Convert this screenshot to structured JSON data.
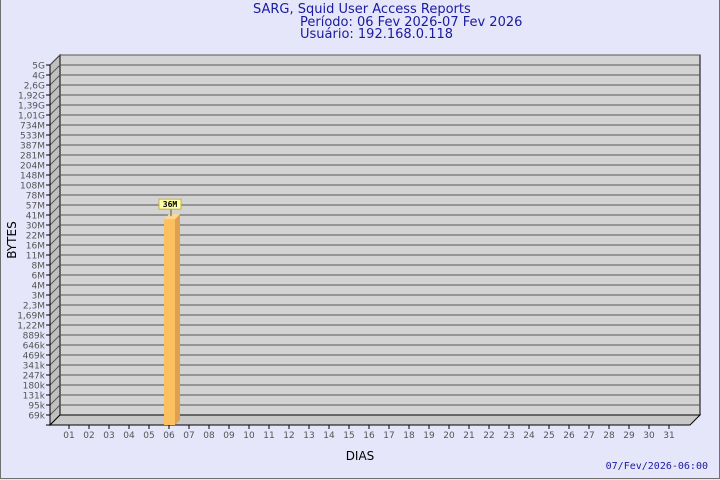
{
  "title": "SARG, Squid User Access Reports",
  "period": "Período: 06 Fev 2026-07 Fev 2026",
  "user": "Usuário: 192.168.0.118",
  "timestamp": "07/Fev/2026-06:00",
  "colors": {
    "background": "#e6e6fa",
    "plot": "#d3d3d3",
    "bar": "#fbc060",
    "bar_side": "#e0a050",
    "title": "#1a1aa0"
  },
  "chart_data": {
    "type": "bar",
    "xlabel": "DIAS",
    "ylabel": "BYTES",
    "categories": [
      "01",
      "02",
      "03",
      "04",
      "05",
      "06",
      "07",
      "08",
      "09",
      "10",
      "11",
      "12",
      "13",
      "14",
      "15",
      "16",
      "17",
      "18",
      "19",
      "20",
      "21",
      "22",
      "23",
      "24",
      "25",
      "26",
      "27",
      "28",
      "29",
      "30",
      "31"
    ],
    "yticks": [
      "69k",
      "95k",
      "131k",
      "180k",
      "247k",
      "341k",
      "469k",
      "646k",
      "889k",
      "1,22M",
      "1,69M",
      "2,3M",
      "3M",
      "4M",
      "6M",
      "8M",
      "11M",
      "16M",
      "22M",
      "30M",
      "41M",
      "57M",
      "78M",
      "108M",
      "148M",
      "204M",
      "281M",
      "387M",
      "533M",
      "734M",
      "1,01G",
      "1,39G",
      "1,92G",
      "2,6G",
      "4G",
      "5G"
    ],
    "y_scale": "log",
    "values": [
      null,
      null,
      null,
      null,
      null,
      36000000,
      null,
      null,
      null,
      null,
      null,
      null,
      null,
      null,
      null,
      null,
      null,
      null,
      null,
      null,
      null,
      null,
      null,
      null,
      null,
      null,
      null,
      null,
      null,
      null,
      null
    ],
    "data_labels": {
      "06": "36M"
    },
    "grid": true
  }
}
